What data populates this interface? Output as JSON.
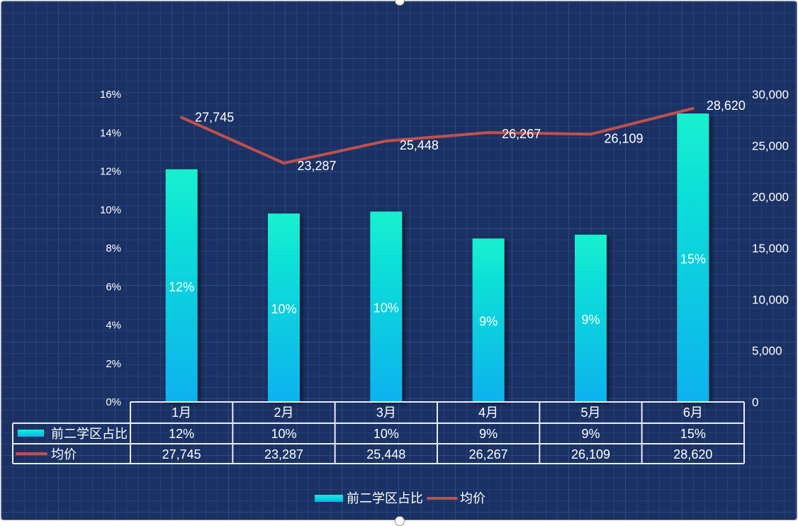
{
  "chart_data": {
    "type": "bar+line",
    "categories": [
      "1月",
      "2月",
      "3月",
      "4月",
      "5月",
      "6月"
    ],
    "series": [
      {
        "name": "前二学区占比",
        "type": "bar",
        "axis": "left",
        "values": [
          0.121,
          0.098,
          0.099,
          0.085,
          0.087,
          0.15
        ],
        "labels": [
          "12%",
          "10%",
          "10%",
          "9%",
          "9%",
          "15%"
        ],
        "color_top": "#13f0cf",
        "color_bottom": "#0ab2ee"
      },
      {
        "name": "均价",
        "type": "line",
        "axis": "right",
        "values": [
          27745,
          23287,
          25448,
          26267,
          26109,
          28620
        ],
        "labels": [
          "27,745",
          "23,287",
          "25,448",
          "26,267",
          "26,109",
          "28,620"
        ],
        "color": "#c0504d"
      }
    ],
    "y_left": {
      "range": [
        0,
        0.16
      ],
      "ticks": [
        "0%",
        "2%",
        "4%",
        "6%",
        "8%",
        "10%",
        "12%",
        "14%",
        "16%"
      ]
    },
    "y_right": {
      "range": [
        0,
        30000
      ],
      "ticks": [
        "0",
        "5,000",
        "10,000",
        "15,000",
        "20,000",
        "25,000",
        "30,000"
      ]
    },
    "data_table": true,
    "legend": "bottom",
    "grid": false,
    "background": "#1b3163"
  }
}
